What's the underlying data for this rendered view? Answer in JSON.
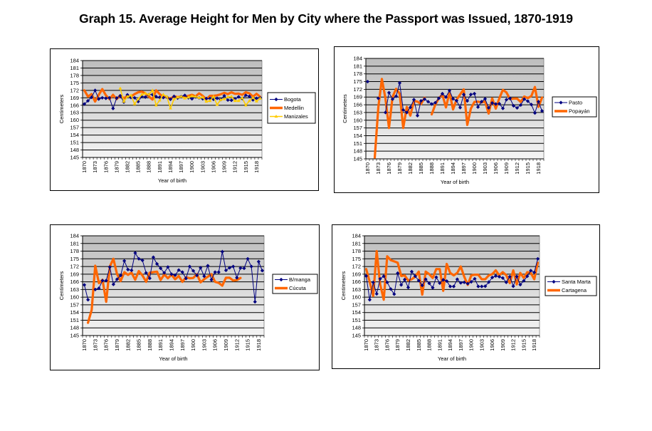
{
  "page": {
    "title": "Graph 15. Average Height for Men by City where the Passport was Issued, 1870-1919"
  },
  "colors": {
    "navy": "#000080",
    "orange": "#ff6600",
    "yellow": "#ffcc00"
  },
  "chart_data": [
    {
      "type": "line",
      "title": "",
      "xlabel": "Year of birth",
      "ylabel": "Centimeters",
      "ylim": [
        145,
        184
      ],
      "yticks": [
        "145",
        "148",
        "151",
        "154",
        "157",
        "160",
        "163",
        "166",
        "169",
        "172",
        "175",
        "178",
        "181",
        "184"
      ],
      "xticks": [
        "1870",
        "1873",
        "1876",
        "1879",
        "1882",
        "1885",
        "1888",
        "1891",
        "1894",
        "1897",
        "1900",
        "1903",
        "1906",
        "1909",
        "1912",
        "1915",
        "1918"
      ],
      "x": [
        1870,
        1871,
        1872,
        1873,
        1874,
        1875,
        1876,
        1877,
        1878,
        1879,
        1880,
        1881,
        1882,
        1883,
        1884,
        1885,
        1886,
        1887,
        1888,
        1889,
        1890,
        1891,
        1892,
        1893,
        1894,
        1895,
        1896,
        1897,
        1898,
        1899,
        1900,
        1901,
        1902,
        1903,
        1904,
        1905,
        1906,
        1907,
        1908,
        1909,
        1910,
        1911,
        1912,
        1913,
        1914,
        1915,
        1916,
        1917,
        1918,
        1919
      ],
      "legend_position": "right",
      "grid": true,
      "series": [
        {
          "name": "Bogota",
          "color": "#000080",
          "style": "line-marker",
          "values": [
            166.5,
            167.8,
            169.2,
            172,
            168.5,
            169,
            168.8,
            169,
            164.7,
            168.9,
            169.8,
            167.3,
            170.2,
            169.1,
            169,
            167.5,
            169.6,
            169.3,
            170.3,
            170.3,
            169.5,
            169.2,
            169.1,
            169.3,
            168.4,
            169.6,
            168.9,
            169.5,
            170,
            169,
            168.6,
            169.4,
            169,
            168.6,
            168.7,
            168.7,
            168.4,
            168.8,
            168.3,
            169.8,
            168.1,
            168,
            168.6,
            169.4,
            168.7,
            170,
            169.6,
            168.2,
            168.8,
            169
          ]
        },
        {
          "name": "Medellin",
          "color": "#ff6600",
          "style": "thick-line",
          "values": [
            172,
            169.5,
            170.5,
            167.5,
            170.2,
            172.5,
            170,
            168.5,
            170.2,
            168.5,
            170,
            168.8,
            169.8,
            169.5,
            170.5,
            171.2,
            171.5,
            170.8,
            169.5,
            168.3,
            172,
            170.5,
            169.4,
            169.2,
            168.7,
            169.6,
            169.3,
            169.5,
            169.4,
            169.8,
            170.2,
            169.6,
            170.8,
            169.8,
            168.4,
            169.8,
            169.8,
            170,
            170.4,
            171,
            170.5,
            171.2,
            170.6,
            170.7,
            170.2,
            171.2,
            170.8,
            169.5,
            170.6,
            169.4
          ]
        },
        {
          "name": "Manizales",
          "color": "#ffcc00",
          "style": "line-marker",
          "values": [
            null,
            null,
            null,
            null,
            null,
            null,
            null,
            null,
            null,
            null,
            172.8,
            167.5,
            169.5,
            170,
            166.5,
            168.5,
            170.3,
            170.8,
            170.3,
            172,
            166,
            168,
            170.3,
            169.5,
            164.8,
            168.5,
            169.2,
            169.5,
            168.8,
            169.2,
            169.7,
            169.5,
            169,
            169.2,
            167.5,
            167.8,
            169.5,
            166.2,
            168.2,
            168.5,
            169.3,
            169.5,
            167.8,
            167.8,
            169,
            166,
            167.8,
            169,
            167.6,
            168.8
          ]
        }
      ]
    },
    {
      "type": "line",
      "title": "",
      "xlabel": "Year of birth",
      "ylabel": "Centimeters",
      "ylim": [
        145,
        184
      ],
      "yticks": [
        "145",
        "148",
        "151",
        "154",
        "157",
        "160",
        "163",
        "166",
        "169",
        "172",
        "175",
        "178",
        "181",
        "184"
      ],
      "xticks": [
        "1870",
        "1873",
        "1876",
        "1879",
        "1882",
        "1885",
        "1888",
        "1891",
        "1894",
        "1897",
        "1900",
        "1903",
        "1906",
        "1909",
        "1912",
        "1915",
        "1918"
      ],
      "x": [
        1870,
        1871,
        1872,
        1873,
        1874,
        1875,
        1876,
        1877,
        1878,
        1879,
        1880,
        1881,
        1882,
        1883,
        1884,
        1885,
        1886,
        1887,
        1888,
        1889,
        1890,
        1891,
        1892,
        1893,
        1894,
        1895,
        1896,
        1897,
        1898,
        1899,
        1900,
        1901,
        1902,
        1903,
        1904,
        1905,
        1906,
        1907,
        1908,
        1909,
        1910,
        1911,
        1912,
        1913,
        1914,
        1915,
        1916,
        1917,
        1918,
        1919
      ],
      "legend_position": "right",
      "grid": true,
      "series": [
        {
          "name": "Pasto",
          "color": "#000080",
          "style": "line-marker",
          "values": [
            175,
            null,
            null,
            168.5,
            null,
            163,
            170.7,
            168.2,
            169.3,
            174.5,
            164,
            163,
            165,
            168,
            161.8,
            167.5,
            168.2,
            167.2,
            166.3,
            166.8,
            168.5,
            170.3,
            169,
            171.5,
            168.3,
            167.6,
            164.9,
            170,
            167.5,
            170,
            170.3,
            165.1,
            167.2,
            168.3,
            164.8,
            166.7,
            166.3,
            166.4,
            164.6,
            168,
            168.5,
            165.6,
            164.8,
            165.9,
            168.2,
            167.4,
            166.1,
            162.8,
            167.2,
            163.6
          ]
        },
        {
          "name": "Popayán",
          "color": "#ff6600",
          "style": "thick-line",
          "values": [
            null,
            null,
            145.5,
            165,
            176,
            168.5,
            157,
            169,
            172.2,
            170.3,
            157,
            165.2,
            161.8,
            167.5,
            167.2,
            166.3,
            168.7,
            null,
            162.3,
            166,
            168.5,
            170,
            165,
            170.8,
            164.2,
            168,
            170,
            172,
            158.2,
            164.5,
            167.1,
            167.2,
            166.9,
            167.3,
            162.6,
            168.5,
            164.5,
            168.5,
            171.8,
            170.8,
            168.2,
            168.4,
            168.4,
            167.1,
            169.2,
            168.6,
            169.4,
            172.9,
            165.2,
            168.8
          ]
        }
      ]
    },
    {
      "type": "line",
      "title": "",
      "xlabel": "Year of birth",
      "ylabel": "Centimeters",
      "ylim": [
        145,
        184
      ],
      "yticks": [
        "145",
        "148",
        "151",
        "154",
        "157",
        "160",
        "163",
        "166",
        "169",
        "172",
        "175",
        "178",
        "181",
        "184"
      ],
      "xticks": [
        "1870",
        "1873",
        "1876",
        "1879",
        "1882",
        "1885",
        "1888",
        "1891",
        "1894",
        "1897",
        "1900",
        "1903",
        "1906",
        "1909",
        "1912",
        "1915",
        "1918"
      ],
      "x": [
        1870,
        1871,
        1872,
        1873,
        1874,
        1875,
        1876,
        1877,
        1878,
        1879,
        1880,
        1881,
        1882,
        1883,
        1884,
        1885,
        1886,
        1887,
        1888,
        1889,
        1890,
        1891,
        1892,
        1893,
        1894,
        1895,
        1896,
        1897,
        1898,
        1899,
        1900,
        1901,
        1902,
        1903,
        1904,
        1905,
        1906,
        1907,
        1908,
        1909,
        1910,
        1911,
        1912,
        1913,
        1914,
        1915,
        1916,
        1917,
        1918,
        1919
      ],
      "legend_position": "right",
      "grid": true,
      "series": [
        {
          "name": "B/manga",
          "color": "#000080",
          "style": "line-marker",
          "values": [
            164.8,
            159,
            null,
            163,
            163.5,
            166.5,
            166.5,
            171.8,
            165,
            167,
            168.5,
            174.2,
            170.8,
            170.5,
            177.3,
            175,
            174.4,
            169.5,
            167.4,
            175.6,
            173,
            171.3,
            169.5,
            171.8,
            169,
            168.6,
            170.6,
            169.8,
            167.3,
            172,
            170.3,
            168.5,
            171.5,
            168.2,
            172.3,
            166.8,
            169.8,
            169.8,
            177.8,
            170.5,
            171.5,
            172,
            167.6,
            171.4,
            171.3,
            175,
            172,
            158.2,
            173.9,
            170.4
          ]
        },
        {
          "name": "Cúcuta",
          "color": "#ff6600",
          "style": "thick-line",
          "values": [
            null,
            150,
            155,
            172.3,
            165.5,
            166.8,
            158.2,
            172,
            175,
            169,
            166.3,
            169.8,
            168.7,
            169.6,
            166.8,
            170.2,
            168.5,
            166,
            169.6,
            169.8,
            170,
            166.7,
            168.9,
            167.4,
            168.8,
            167,
            168.3,
            166,
            167.8,
            167.4,
            167.5,
            169,
            165.8,
            167,
            168,
            169,
            166,
            165.6,
            164.5,
            167.6,
            167.6,
            166.5,
            166.7,
            167.5,
            null,
            null,
            null,
            null,
            null,
            null
          ]
        }
      ]
    },
    {
      "type": "line",
      "title": "",
      "xlabel": "Year of birth",
      "ylabel": "Centimeters",
      "ylim": [
        145,
        184
      ],
      "yticks": [
        "145",
        "148",
        "151",
        "154",
        "157",
        "160",
        "163",
        "166",
        "169",
        "172",
        "175",
        "178",
        "181",
        "184"
      ],
      "xticks": [
        "1870",
        "1873",
        "1876",
        "1879",
        "1882",
        "1885",
        "1888",
        "1891",
        "1894",
        "1897",
        "1900",
        "1903",
        "1906",
        "1909",
        "1912",
        "1915",
        "1918"
      ],
      "x": [
        1870,
        1871,
        1872,
        1873,
        1874,
        1875,
        1876,
        1877,
        1878,
        1879,
        1880,
        1881,
        1882,
        1883,
        1884,
        1885,
        1886,
        1887,
        1888,
        1889,
        1890,
        1891,
        1892,
        1893,
        1894,
        1895,
        1896,
        1897,
        1898,
        1899,
        1900,
        1901,
        1902,
        1903,
        1904,
        1905,
        1906,
        1907,
        1908,
        1909,
        1910,
        1911,
        1912,
        1913,
        1914,
        1915,
        1916,
        1917,
        1918,
        1919
      ],
      "legend_position": "right",
      "grid": true,
      "series": [
        {
          "name": "Santa Marta",
          "color": "#000080",
          "style": "line-marker",
          "values": [
            168.3,
            159,
            165.8,
            161.3,
            167.2,
            168.2,
            165.8,
            163.2,
            161.2,
            169.4,
            164.8,
            166.9,
            163.8,
            170,
            168.2,
            166.5,
            164.6,
            167,
            165.4,
            163.7,
            167.8,
            165.5,
            166.8,
            166.3,
            164.2,
            164.2,
            167,
            165.6,
            165.8,
            165.3,
            166,
            167.2,
            164.2,
            164.2,
            164.3,
            165.9,
            167.7,
            168.3,
            168,
            167.5,
            165.8,
            168,
            164.3,
            168.1,
            164.9,
            166.4,
            168.2,
            170.4,
            169.7,
            175
          ]
        },
        {
          "name": "Cartagena",
          "color": "#ff6600",
          "style": "thick-line",
          "values": [
            171,
            166,
            160.5,
            178,
            165,
            159,
            176,
            174.5,
            174,
            173.5,
            168.3,
            168.5,
            166.5,
            167,
            168,
            170,
            161,
            170,
            169,
            167.5,
            171,
            171,
            162.5,
            173,
            169.5,
            168.5,
            169.5,
            172,
            168,
            164.8,
            168.5,
            168.8,
            168.8,
            167,
            167,
            168.5,
            169,
            170.5,
            168.5,
            169.8,
            168.6,
            165.5,
            170.5,
            165,
            169.5,
            167.5,
            169.8,
            169.5,
            167,
            173.5
          ]
        }
      ]
    }
  ]
}
